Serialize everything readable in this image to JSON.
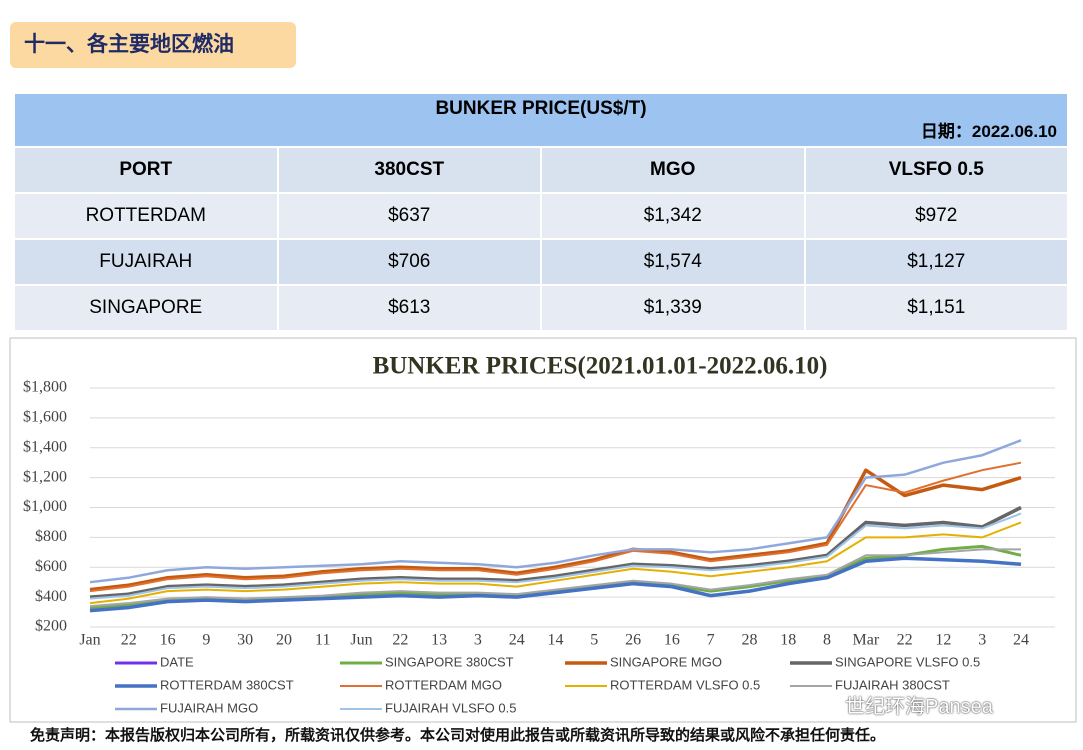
{
  "header": {
    "title": "十一、各主要地区燃油"
  },
  "table": {
    "title": "BUNKER PRICE(US$/T)",
    "date": "日期：2022.06.10",
    "columns": [
      "PORT",
      "380CST",
      "MGO",
      "VLSFO 0.5"
    ],
    "rows": [
      [
        "ROTTERDAM",
        "$637",
        "$1,342",
        "$972"
      ],
      [
        "FUJAIRAH",
        "$706",
        "$1,574",
        "$1,127"
      ],
      [
        "SINGAPORE",
        "$613",
        "$1,339",
        "$1,151"
      ]
    ]
  },
  "chart_data": {
    "type": "line",
    "title": "BUNKER PRICES(2021.01.01-2022.06.10)",
    "categories": [
      "Jan",
      "22",
      "16",
      "9",
      "30",
      "20",
      "11",
      "Jun",
      "22",
      "13",
      "3",
      "24",
      "14",
      "5",
      "26",
      "16",
      "7",
      "28",
      "18",
      "8",
      "Mar",
      "22",
      "12",
      "3",
      "24"
    ],
    "ylim": [
      200,
      1800
    ],
    "yticks": [
      {
        "value": 200,
        "label": "$200"
      },
      {
        "value": 400,
        "label": "$400"
      },
      {
        "value": 600,
        "label": "$600"
      },
      {
        "value": 800,
        "label": "$800"
      },
      {
        "value": 1000,
        "label": "$1,000"
      },
      {
        "value": 1200,
        "label": "$1,200"
      },
      {
        "value": 1400,
        "label": "$1,400"
      },
      {
        "value": 1600,
        "label": "$1,600"
      },
      {
        "value": 1800,
        "label": "$1,800"
      }
    ],
    "grid": true,
    "series": [
      {
        "name": "DATE",
        "color": "#7030f0",
        "line_width": 3,
        "values": [
          null,
          null,
          null,
          null,
          null,
          null,
          null,
          null,
          null,
          null,
          null,
          null,
          null,
          null,
          null,
          null,
          null,
          null,
          null,
          null,
          null,
          null,
          null,
          null,
          null
        ]
      },
      {
        "name": "SINGAPORE 380CST",
        "color": "#70ad47",
        "line_width": 3,
        "values": [
          330,
          350,
          380,
          390,
          380,
          390,
          400,
          420,
          430,
          420,
          420,
          410,
          440,
          470,
          500,
          480,
          440,
          470,
          510,
          540,
          660,
          680,
          720,
          740,
          680
        ]
      },
      {
        "name": "SINGAPORE MGO",
        "color": "#c55a11",
        "line_width": 3.5,
        "values": [
          450,
          480,
          530,
          550,
          530,
          540,
          570,
          590,
          600,
          590,
          590,
          560,
          600,
          650,
          720,
          700,
          650,
          680,
          710,
          760,
          1250,
          1080,
          1150,
          1120,
          1200
        ]
      },
      {
        "name": "SINGAPORE VLSFO 0.5",
        "color": "#666666",
        "line_width": 3.5,
        "values": [
          400,
          420,
          470,
          480,
          470,
          480,
          500,
          520,
          530,
          520,
          520,
          510,
          540,
          580,
          620,
          610,
          590,
          610,
          640,
          680,
          900,
          880,
          900,
          870,
          1000
        ]
      },
      {
        "name": "ROTTERDAM 380CST",
        "color": "#4472c4",
        "line_width": 3.5,
        "values": [
          310,
          330,
          370,
          380,
          370,
          380,
          390,
          400,
          410,
          400,
          410,
          400,
          430,
          460,
          490,
          470,
          410,
          440,
          490,
          530,
          640,
          660,
          650,
          640,
          620
        ]
      },
      {
        "name": "ROTTERDAM MGO",
        "color": "#e07030",
        "line_width": 2,
        "values": [
          440,
          470,
          520,
          540,
          520,
          530,
          560,
          580,
          590,
          580,
          580,
          550,
          590,
          640,
          710,
          690,
          640,
          670,
          700,
          750,
          1150,
          1100,
          1180,
          1250,
          1300
        ]
      },
      {
        "name": "ROTTERDAM VLSFO 0.5",
        "color": "#e6b000",
        "line_width": 2,
        "values": [
          360,
          390,
          440,
          450,
          440,
          450,
          470,
          490,
          500,
          490,
          490,
          470,
          510,
          550,
          590,
          570,
          540,
          570,
          600,
          640,
          800,
          800,
          820,
          800,
          900
        ]
      },
      {
        "name": "FUJAIRAH 380CST",
        "color": "#a5a5a5",
        "line_width": 2,
        "values": [
          340,
          360,
          390,
          400,
          390,
          400,
          410,
          430,
          440,
          430,
          430,
          420,
          450,
          480,
          510,
          490,
          450,
          480,
          520,
          550,
          680,
          680,
          700,
          720,
          720
        ]
      },
      {
        "name": "FUJAIRAH MGO",
        "color": "#8fa8dc",
        "line_width": 2.5,
        "values": [
          500,
          530,
          580,
          600,
          590,
          600,
          610,
          620,
          640,
          630,
          620,
          600,
          630,
          680,
          720,
          720,
          700,
          720,
          760,
          800,
          1200,
          1220,
          1300,
          1350,
          1450
        ]
      },
      {
        "name": "FUJAIRAH VLSFO 0.5",
        "color": "#9dc3e6",
        "line_width": 2,
        "values": [
          390,
          410,
          460,
          470,
          460,
          470,
          490,
          510,
          520,
          510,
          510,
          500,
          530,
          570,
          610,
          600,
          580,
          600,
          630,
          670,
          880,
          860,
          880,
          860,
          960
        ]
      }
    ]
  },
  "footer": {
    "disclaimer": "免责声明：本报告版权归本公司所有，所载资讯仅供参考。本公司对使用此报告或所载资讯所导致的结果或风险不承担任何责任。"
  },
  "watermark": "世纪环海Pansea"
}
